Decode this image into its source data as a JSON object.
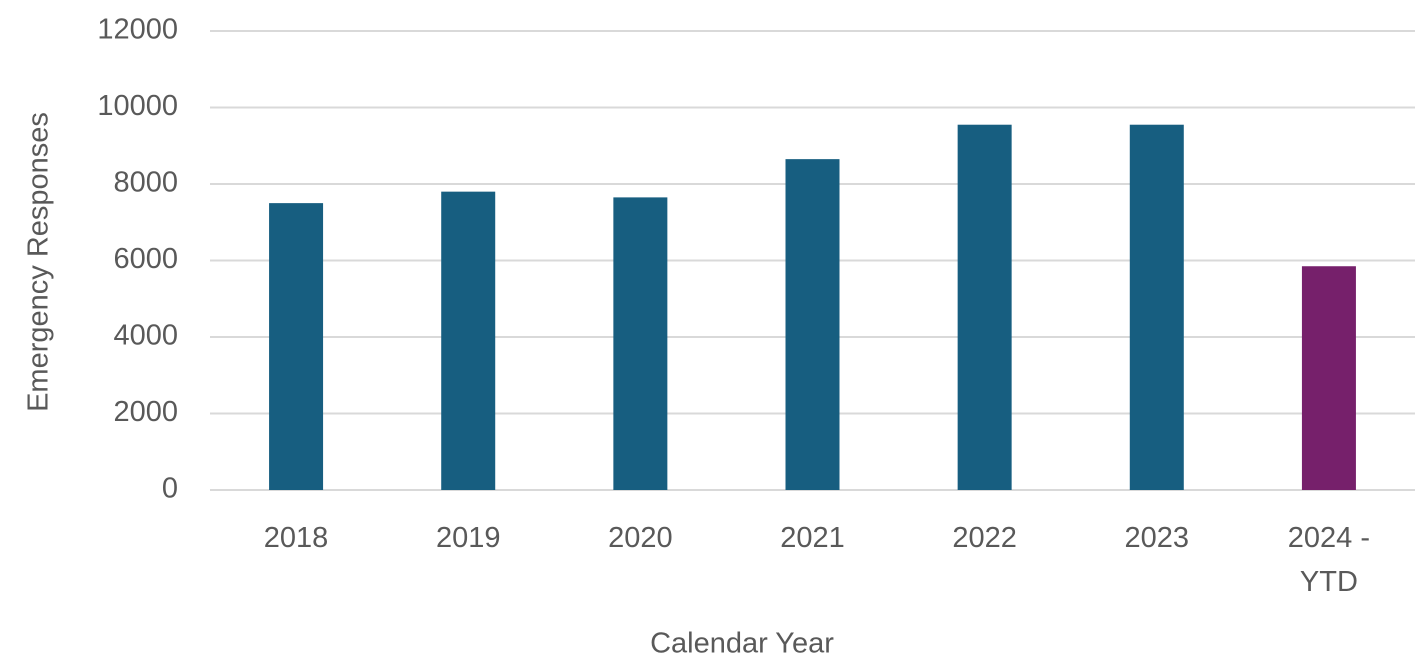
{
  "chart_data": {
    "type": "bar",
    "x_label": "Calendar Year",
    "y_label": "Emergency Responses",
    "categories": [
      "2018",
      "2019",
      "2020",
      "2021",
      "2022",
      "2023",
      "2024 - YTD"
    ],
    "values": [
      7500,
      7800,
      7650,
      8650,
      9550,
      9550,
      5850
    ],
    "colors": [
      "#175e80",
      "#175e80",
      "#175e80",
      "#175e80",
      "#175e80",
      "#175e80",
      "#76206b"
    ],
    "ylim": [
      0,
      12000
    ],
    "yticks": [
      0,
      2000,
      4000,
      6000,
      8000,
      10000,
      12000
    ],
    "grid": true
  }
}
